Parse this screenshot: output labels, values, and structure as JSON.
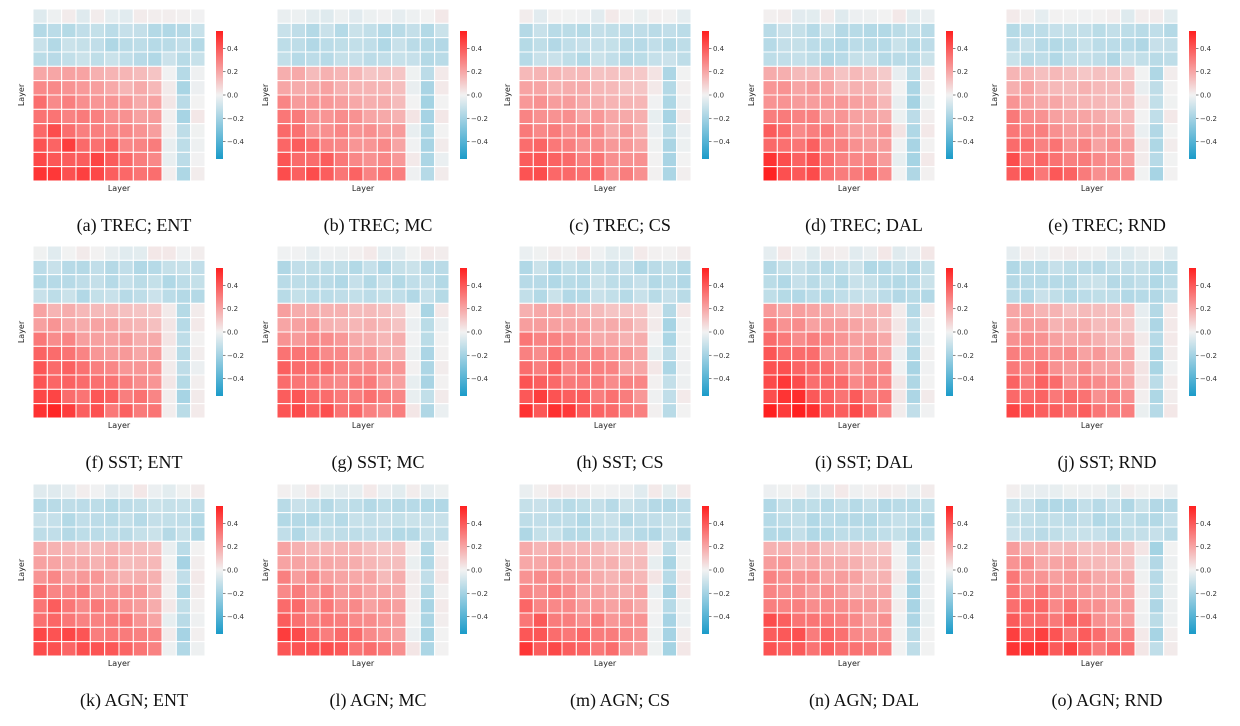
{
  "colors": {
    "negative": "#1a9bc9",
    "neutral": "#f2f2f2",
    "positive": "#ff2020"
  },
  "chart_data": {
    "type": "heatmap",
    "grid_size": 12,
    "xlabel": "Layer",
    "ylabel": "Layer",
    "colorbar": {
      "range": [
        -0.55,
        0.55
      ],
      "ticks": [
        "0.4",
        "0.2",
        "0.0",
        "−0.2",
        "−0.4"
      ]
    },
    "panels": [
      {
        "caption": "(a) TREC; ENT",
        "split": 4,
        "blue_col": 10,
        "peak": 0.55
      },
      {
        "caption": "(b) TREC; MC",
        "split": 4,
        "blue_col": 10,
        "peak": 0.45
      },
      {
        "caption": "(c) TREC; CS",
        "split": 4,
        "blue_col": 10,
        "peak": 0.42
      },
      {
        "caption": "(d) TREC; DAL",
        "split": 4,
        "blue_col": 10,
        "peak": 0.48
      },
      {
        "caption": "(e) TREC; RND",
        "split": 4,
        "blue_col": 10,
        "peak": 0.42
      },
      {
        "caption": "(f) SST; ENT",
        "split": 4,
        "blue_col": 10,
        "peak": 0.5
      },
      {
        "caption": "(g) SST; MC",
        "split": 4,
        "blue_col": 10,
        "peak": 0.48
      },
      {
        "caption": "(h) SST; CS",
        "split": 4,
        "blue_col": 10,
        "peak": 0.5
      },
      {
        "caption": "(i) SST; DAL",
        "split": 4,
        "blue_col": 10,
        "peak": 0.55
      },
      {
        "caption": "(j) SST; RND",
        "split": 4,
        "blue_col": 10,
        "peak": 0.45
      },
      {
        "caption": "(k) AGN; ENT",
        "split": 4,
        "blue_col": 10,
        "peak": 0.48
      },
      {
        "caption": "(l) AGN; MC",
        "split": 4,
        "blue_col": 10,
        "peak": 0.46
      },
      {
        "caption": "(m) AGN; CS",
        "split": 4,
        "blue_col": 10,
        "peak": 0.45
      },
      {
        "caption": "(n) AGN; DAL",
        "split": 4,
        "blue_col": 10,
        "peak": 0.46
      },
      {
        "caption": "(o) AGN; RND",
        "split": 4,
        "blue_col": 10,
        "peak": 0.5
      }
    ]
  }
}
